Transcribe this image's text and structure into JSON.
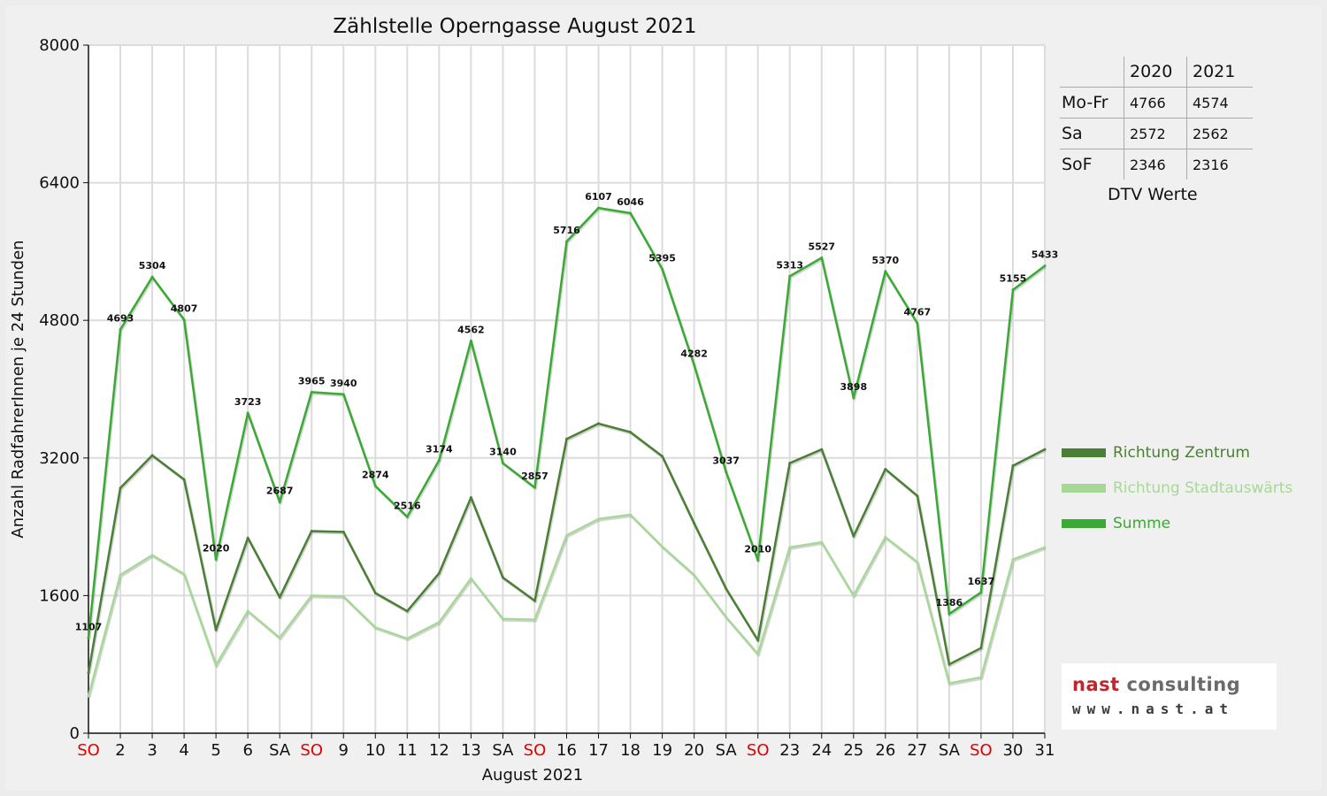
{
  "chart_data": {
    "type": "line",
    "title": "Zählstelle Operngasse August 2021",
    "xlabel": "August 2021",
    "ylabel": "Anzahl RadfahrerInnen je 24 Stunden",
    "ylim": [
      0,
      8000
    ],
    "yticks": [
      0,
      1600,
      3200,
      4800,
      6400,
      8000
    ],
    "grid": true,
    "legend_position": "right",
    "categories": [
      "SO",
      "2",
      "3",
      "4",
      "5",
      "6",
      "SA",
      "SO",
      "9",
      "10",
      "11",
      "12",
      "13",
      "SA",
      "SO",
      "16",
      "17",
      "18",
      "19",
      "20",
      "SA",
      "SO",
      "23",
      "24",
      "25",
      "26",
      "27",
      "SA",
      "SO",
      "30",
      "31"
    ],
    "category_colors": [
      "#e00000",
      "#111111",
      "#111111",
      "#111111",
      "#111111",
      "#111111",
      "#111111",
      "#e00000",
      "#111111",
      "#111111",
      "#111111",
      "#111111",
      "#111111",
      "#111111",
      "#e00000",
      "#111111",
      "#111111",
      "#111111",
      "#111111",
      "#111111",
      "#111111",
      "#e00000",
      "#111111",
      "#111111",
      "#111111",
      "#111111",
      "#111111",
      "#111111",
      "#e00000",
      "#111111",
      "#111111"
    ],
    "series": [
      {
        "name": "Richtung Zentrum",
        "color": "#4a7f35",
        "values": [
          700,
          2850,
          3230,
          2950,
          1200,
          2270,
          1580,
          2350,
          2340,
          1630,
          1420,
          1860,
          2740,
          1810,
          1540,
          3420,
          3600,
          3500,
          3220,
          2440,
          1680,
          1080,
          3140,
          3300,
          2290,
          3070,
          2760,
          800,
          990,
          3110,
          3300
        ]
      },
      {
        "name": "Richtung Stadtauswärts",
        "color": "#a8d898",
        "values": [
          430,
          1840,
          2070,
          1850,
          790,
          1420,
          1110,
          1600,
          1590,
          1230,
          1100,
          1290,
          1800,
          1330,
          1320,
          2300,
          2490,
          2540,
          2170,
          1840,
          1350,
          920,
          2160,
          2220,
          1600,
          2280,
          1990,
          580,
          650,
          2020,
          2160
        ]
      },
      {
        "name": "Summe",
        "color": "#3aaa35",
        "values": [
          1107,
          4693,
          5304,
          4807,
          2020,
          3723,
          2687,
          3965,
          3940,
          2874,
          2516,
          3174,
          4562,
          3140,
          2857,
          5716,
          6107,
          6046,
          5395,
          4282,
          3037,
          2010,
          5313,
          5527,
          3898,
          5370,
          4767,
          1386,
          1637,
          5155,
          5433
        ]
      }
    ],
    "data_labels": [
      "1107",
      "4693",
      "5304",
      "4807",
      "2020",
      "3723",
      "2687",
      "3965",
      "3940",
      "2874",
      "2516",
      "3174",
      "4562",
      "3140",
      "2857",
      "5716",
      "6107",
      "6046",
      "5395",
      "4282",
      "3037",
      "2010",
      "5313",
      "5527",
      "3898",
      "5370",
      "4767",
      "1386",
      "1637",
      "5155",
      "5433"
    ]
  },
  "dtv_table": {
    "caption": "DTV Werte",
    "headers": [
      "",
      "2020",
      "2021"
    ],
    "rows": [
      {
        "label": "Mo-Fr",
        "v2020": "4766",
        "v2021": "4574"
      },
      {
        "label": "Sa",
        "v2020": "2572",
        "v2021": "2562"
      },
      {
        "label": "SoF",
        "v2020": "2346",
        "v2021": "2316"
      }
    ]
  },
  "logo": {
    "name_part1": "nast",
    "name_part2": " consulting",
    "url": "www.nast.at"
  }
}
